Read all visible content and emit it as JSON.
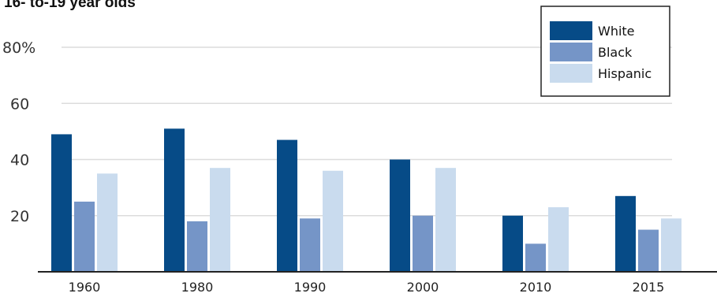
{
  "chart_data": {
    "type": "bar",
    "title": "16- to-19 year olds",
    "categories": [
      "1960",
      "1980",
      "1990",
      "2000",
      "2010",
      "2015"
    ],
    "series": [
      {
        "name": "White",
        "color": "#064b87",
        "values": [
          49,
          51,
          47,
          40,
          20,
          27
        ]
      },
      {
        "name": "Black",
        "color": "#7595c7",
        "values": [
          25,
          18,
          19,
          20,
          10,
          15
        ]
      },
      {
        "name": "Hispanic",
        "color": "#c9dbee",
        "values": [
          35,
          37,
          36,
          37,
          23,
          19
        ]
      }
    ],
    "yticks": [
      "20",
      "40",
      "60",
      "80%"
    ],
    "ylim": [
      0,
      80
    ],
    "grid": true,
    "legend_position": "top-right"
  }
}
